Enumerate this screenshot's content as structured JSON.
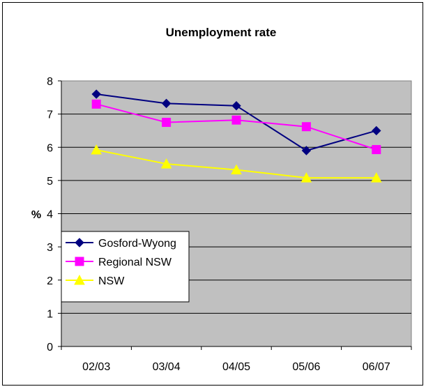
{
  "chart_data": {
    "type": "line",
    "title": "Unemployment rate",
    "xlabel": "",
    "ylabel": "%",
    "categories": [
      "02/03",
      "03/04",
      "04/05",
      "05/06",
      "06/07"
    ],
    "ylim": [
      0,
      8
    ],
    "yticks": [
      0,
      1,
      2,
      3,
      4,
      5,
      6,
      7,
      8
    ],
    "grid": true,
    "legend_position": "lower-left",
    "plot_background": "#c0c0c0",
    "series": [
      {
        "name": "Gosford-Wyong",
        "values": [
          7.6,
          7.32,
          7.25,
          5.9,
          6.5
        ],
        "color": "#000080",
        "marker": "diamond"
      },
      {
        "name": "Regional NSW",
        "values": [
          7.3,
          6.75,
          6.82,
          6.62,
          5.93
        ],
        "color": "#ff00ff",
        "marker": "square"
      },
      {
        "name": "NSW",
        "values": [
          5.92,
          5.5,
          5.32,
          5.08,
          5.08
        ],
        "color": "#ffff00",
        "marker": "triangle"
      }
    ]
  }
}
